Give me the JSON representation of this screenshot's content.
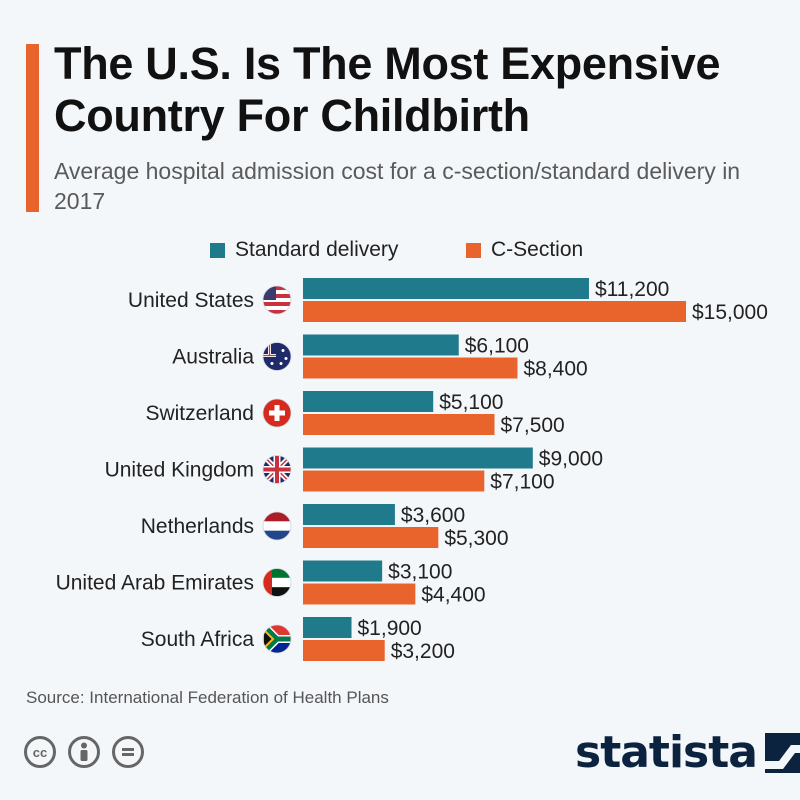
{
  "title": "The U.S. Is The Most Expensive Country For Childbirth",
  "subtitle": "Average hospital admission cost for a c-section/standard delivery in 2017",
  "source": "Source: International Federation of Health Plans",
  "brand": "statista",
  "license_icons": [
    "cc-icon",
    "person-icon",
    "equals-icon"
  ],
  "colors": {
    "standard": "#1f7a8c",
    "csection": "#e8642c",
    "accent": "#e8642c",
    "brand": "#0c2340"
  },
  "chart_data": {
    "type": "bar",
    "orientation": "horizontal",
    "title": "The U.S. Is The Most Expensive Country For Childbirth",
    "subtitle": "Average hospital admission cost for a c-section/standard delivery in 2017",
    "categories": [
      "United States",
      "Australia",
      "Switzerland",
      "United Kingdom",
      "Netherlands",
      "United Arab Emirates",
      "South Africa"
    ],
    "flags": [
      "us-flag-icon",
      "australia-flag-icon",
      "switzerland-flag-icon",
      "uk-flag-icon",
      "netherlands-flag-icon",
      "uae-flag-icon",
      "south-africa-flag-icon"
    ],
    "series": [
      {
        "name": "Standard delivery",
        "values": [
          11200,
          6100,
          5100,
          9000,
          3600,
          3100,
          1900
        ],
        "labels": [
          "$11,200",
          "$6,100",
          "$5,100",
          "$9,000",
          "$3,600",
          "$3,100",
          "$1,900"
        ]
      },
      {
        "name": "C-Section",
        "values": [
          15000,
          8400,
          7500,
          7100,
          5300,
          4400,
          3200
        ],
        "labels": [
          "$15,000",
          "$8,400",
          "$7,500",
          "$7,100",
          "$5,300",
          "$4,400",
          "$3,200"
        ]
      }
    ],
    "xlim": [
      0,
      15000
    ],
    "legend": "top",
    "grid": false
  }
}
